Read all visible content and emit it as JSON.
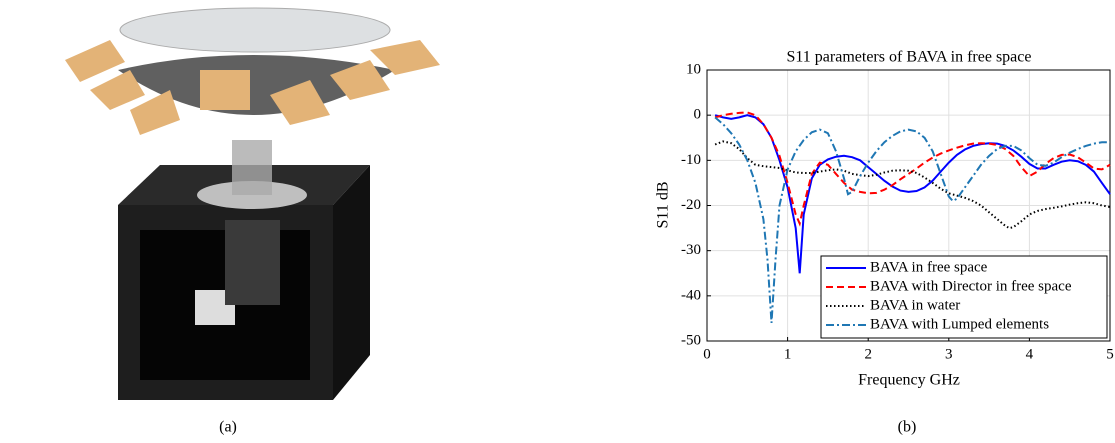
{
  "captions": [
    "(a)",
    "(b)"
  ],
  "chart_data": {
    "type": "line",
    "title": "S11 parameters of BAVA in free space",
    "x_label": "Frequency GHz",
    "y_label": "S11 dB",
    "xlim": [
      0,
      5
    ],
    "xticks": [
      0,
      1,
      2,
      3,
      4,
      5
    ],
    "ylim": [
      -50,
      10
    ],
    "yticks": [
      -50,
      -40,
      -30,
      -20,
      -10,
      0,
      10
    ],
    "grid": true,
    "legend": "lower right",
    "series": [
      {
        "name": "BAVA in free space",
        "color": "#0000ff",
        "style": "solid",
        "x": [
          0.1,
          0.2,
          0.3,
          0.4,
          0.5,
          0.6,
          0.7,
          0.8,
          0.9,
          1.0,
          1.1,
          1.15,
          1.2,
          1.3,
          1.4,
          1.5,
          1.6,
          1.7,
          1.8,
          1.9,
          2.0,
          2.1,
          2.2,
          2.3,
          2.4,
          2.5,
          2.6,
          2.7,
          2.8,
          2.9,
          3.0,
          3.1,
          3.2,
          3.3,
          3.4,
          3.5,
          3.6,
          3.7,
          3.8,
          3.9,
          4.0,
          4.1,
          4.2,
          4.3,
          4.4,
          4.5,
          4.6,
          4.7,
          4.8,
          4.9,
          5.0
        ],
        "values": [
          0,
          -0.5,
          -0.8,
          -0.5,
          0,
          -0.5,
          -2,
          -5,
          -10,
          -16,
          -25,
          -35,
          -22,
          -14,
          -11,
          -9.8,
          -9.2,
          -9,
          -9.3,
          -10,
          -11.5,
          -13,
          -14.5,
          -15.8,
          -16.7,
          -17,
          -16.8,
          -16,
          -14.5,
          -12.5,
          -10.5,
          -8.8,
          -7.6,
          -6.8,
          -6.4,
          -6.2,
          -6.3,
          -6.8,
          -7.8,
          -9.2,
          -10.8,
          -11.8,
          -11.8,
          -11,
          -10.3,
          -10,
          -10.2,
          -11,
          -12.5,
          -15,
          -17.5
        ]
      },
      {
        "name": "BAVA with Director in free space",
        "color": "#ff0000",
        "style": "dashed",
        "x": [
          0.1,
          0.2,
          0.3,
          0.4,
          0.5,
          0.6,
          0.7,
          0.8,
          0.9,
          1.0,
          1.1,
          1.15,
          1.2,
          1.3,
          1.4,
          1.5,
          1.6,
          1.7,
          1.8,
          1.9,
          2.0,
          2.1,
          2.2,
          2.3,
          2.4,
          2.5,
          2.6,
          2.7,
          2.8,
          2.9,
          3.0,
          3.1,
          3.2,
          3.3,
          3.4,
          3.5,
          3.6,
          3.7,
          3.8,
          3.9,
          4.0,
          4.1,
          4.2,
          4.3,
          4.4,
          4.5,
          4.6,
          4.7,
          4.8,
          4.9,
          5.0
        ],
        "values": [
          -0.5,
          0,
          0.3,
          0.5,
          0.6,
          0,
          -2,
          -5,
          -9,
          -15,
          -22,
          -24,
          -20,
          -13,
          -10.5,
          -11,
          -13,
          -15,
          -16.5,
          -17,
          -17.3,
          -17.2,
          -16.5,
          -15.5,
          -14.2,
          -13,
          -11.8,
          -10.5,
          -9.4,
          -8.5,
          -7.8,
          -7.2,
          -6.7,
          -6.3,
          -6.2,
          -6.3,
          -6.6,
          -7.5,
          -9,
          -11.5,
          -13.5,
          -12.5,
          -10.8,
          -9.5,
          -8.8,
          -8.7,
          -9.3,
          -10.5,
          -11.8,
          -12,
          -11
        ]
      },
      {
        "name": "BAVA in water",
        "color": "#000000",
        "style": "dotted",
        "x": [
          0.1,
          0.2,
          0.3,
          0.4,
          0.5,
          0.6,
          0.7,
          0.8,
          0.9,
          1.0,
          1.1,
          1.2,
          1.3,
          1.4,
          1.5,
          1.6,
          1.7,
          1.8,
          1.9,
          2.0,
          2.1,
          2.2,
          2.3,
          2.4,
          2.5,
          2.6,
          2.7,
          2.8,
          2.9,
          3.0,
          3.1,
          3.2,
          3.3,
          3.4,
          3.5,
          3.6,
          3.7,
          3.75,
          3.8,
          3.9,
          4.0,
          4.1,
          4.2,
          4.3,
          4.4,
          4.5,
          4.6,
          4.7,
          4.8,
          4.9,
          5.0
        ],
        "values": [
          -6.5,
          -5.8,
          -6.2,
          -7.5,
          -9.5,
          -11,
          -11.3,
          -11.5,
          -11.7,
          -12.2,
          -12.7,
          -12.8,
          -12.8,
          -12.5,
          -12.2,
          -12,
          -12.3,
          -13,
          -13.3,
          -13.5,
          -13.2,
          -12.7,
          -12.3,
          -12.2,
          -12.3,
          -12.8,
          -13.8,
          -15,
          -16.3,
          -17.3,
          -17.8,
          -18.3,
          -19,
          -20,
          -21.5,
          -23,
          -24.5,
          -25,
          -24.8,
          -23.5,
          -22,
          -21.2,
          -20.8,
          -20.5,
          -20.2,
          -19.8,
          -19.5,
          -19.3,
          -19.5,
          -20,
          -20.3
        ]
      },
      {
        "name": "BAVA with Lumped elements",
        "color": "#1f77b4",
        "style": "dashdot",
        "x": [
          0.1,
          0.2,
          0.3,
          0.4,
          0.5,
          0.6,
          0.7,
          0.75,
          0.8,
          0.85,
          0.9,
          1.0,
          1.1,
          1.2,
          1.3,
          1.4,
          1.5,
          1.6,
          1.7,
          1.75,
          1.8,
          1.9,
          2.0,
          2.1,
          2.2,
          2.3,
          2.4,
          2.5,
          2.6,
          2.7,
          2.8,
          2.9,
          3.0,
          3.05,
          3.1,
          3.2,
          3.3,
          3.4,
          3.5,
          3.6,
          3.7,
          3.8,
          3.9,
          4.0,
          4.1,
          4.2,
          4.3,
          4.4,
          4.5,
          4.6,
          4.7,
          4.8,
          4.9,
          5.0
        ],
        "values": [
          -0.5,
          -2,
          -4,
          -6.5,
          -10,
          -15,
          -23,
          -32,
          -46,
          -32,
          -20,
          -12,
          -8,
          -5.5,
          -3.8,
          -3.2,
          -4,
          -8,
          -14,
          -17.5,
          -17,
          -13.5,
          -10.5,
          -8,
          -6,
          -4.6,
          -3.6,
          -3.2,
          -3.6,
          -5,
          -8,
          -13,
          -18,
          -19,
          -18.5,
          -16,
          -13.5,
          -11,
          -9,
          -7.5,
          -6.8,
          -6.8,
          -7.8,
          -9.5,
          -11,
          -11.2,
          -10.5,
          -9.3,
          -8.3,
          -7.5,
          -6.8,
          -6.3,
          -6,
          -6
        ]
      }
    ]
  }
}
